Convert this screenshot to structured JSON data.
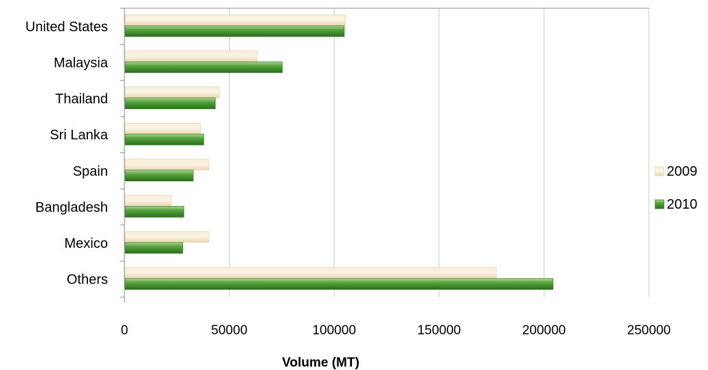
{
  "chart_data": {
    "type": "bar",
    "orientation": "horizontal",
    "categories": [
      "United States",
      "Malaysia",
      "Thailand",
      "Sri Lanka",
      "Spain",
      "Bangladesh",
      "Mexico",
      "Others"
    ],
    "series": [
      {
        "name": "2009",
        "values": [
          105000,
          63000,
          45000,
          36000,
          40000,
          22000,
          40000,
          177000
        ],
        "color": "#f6e8cf"
      },
      {
        "name": "2010",
        "values": [
          104500,
          75000,
          43000,
          37500,
          32500,
          28000,
          27500,
          204000
        ],
        "color": "#3a8a2a"
      }
    ],
    "xlabel": "Volume (MT)",
    "ylabel": "",
    "xlim": [
      0,
      250000
    ],
    "xticks": [
      "0",
      "50000",
      "100000",
      "150000",
      "200000",
      "250000"
    ],
    "grid": "vertical",
    "legend_position": "right"
  }
}
